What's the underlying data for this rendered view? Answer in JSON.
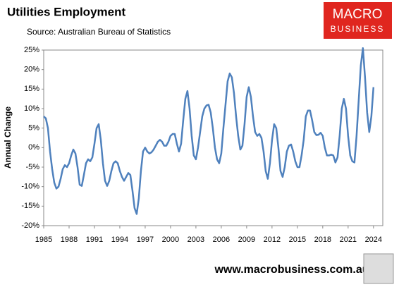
{
  "chart_data": {
    "type": "line",
    "title": "Utilities Employment",
    "subtitle": "Source: Australian Bureau of Statistics",
    "y_label": "Annual Change",
    "logo": [
      "MACRO",
      "BUSINESS"
    ],
    "footer": "www.macrobusiness.com.au",
    "xlim": [
      1985,
      2025.1
    ],
    "xticks": [
      1985,
      1988,
      1991,
      1994,
      1997,
      2000,
      2003,
      2006,
      2009,
      2012,
      2015,
      2018,
      2021,
      2024
    ],
    "ylim": [
      -20,
      25
    ],
    "yticks": [
      {
        "value": -20,
        "label": "-20%"
      },
      {
        "value": -15,
        "label": "-15%"
      },
      {
        "value": -10,
        "label": "-10%"
      },
      {
        "value": -5,
        "label": "-5%"
      },
      {
        "value": 0,
        "label": "0%"
      },
      {
        "value": 5,
        "label": "5%"
      },
      {
        "value": 10,
        "label": "10%"
      },
      {
        "value": 15,
        "label": "15%"
      },
      {
        "value": 20,
        "label": "20%"
      },
      {
        "value": 25,
        "label": "25%"
      }
    ],
    "x": [
      1985,
      1985.25,
      1985.5,
      1985.75,
      1986,
      1986.25,
      1986.5,
      1986.75,
      1987,
      1987.25,
      1987.5,
      1987.75,
      1988,
      1988.25,
      1988.5,
      1988.75,
      1989,
      1989.25,
      1989.5,
      1989.75,
      1990,
      1990.25,
      1990.5,
      1990.75,
      1991,
      1991.25,
      1991.5,
      1991.75,
      1992,
      1992.25,
      1992.5,
      1992.75,
      1993,
      1993.25,
      1993.5,
      1993.75,
      1994,
      1994.25,
      1994.5,
      1994.75,
      1995,
      1995.25,
      1995.5,
      1995.75,
      1996,
      1996.25,
      1996.5,
      1996.75,
      1997,
      1997.25,
      1997.5,
      1997.75,
      1998,
      1998.25,
      1998.5,
      1998.75,
      1999,
      1999.25,
      1999.5,
      1999.75,
      2000,
      2000.25,
      2000.5,
      2000.75,
      2001,
      2001.25,
      2001.5,
      2001.75,
      2002,
      2002.25,
      2002.5,
      2002.75,
      2003,
      2003.25,
      2003.5,
      2003.75,
      2004,
      2004.25,
      2004.5,
      2004.75,
      2005,
      2005.25,
      2005.5,
      2005.75,
      2006,
      2006.25,
      2006.5,
      2006.75,
      2007,
      2007.25,
      2007.5,
      2007.75,
      2008,
      2008.25,
      2008.5,
      2008.75,
      2009,
      2009.25,
      2009.5,
      2009.75,
      2010,
      2010.25,
      2010.5,
      2010.75,
      2011,
      2011.25,
      2011.5,
      2011.75,
      2012,
      2012.25,
      2012.5,
      2012.75,
      2013,
      2013.25,
      2013.5,
      2013.75,
      2014,
      2014.25,
      2014.5,
      2014.75,
      2015,
      2015.25,
      2015.5,
      2015.75,
      2016,
      2016.25,
      2016.5,
      2016.75,
      2017,
      2017.25,
      2017.5,
      2017.75,
      2018,
      2018.25,
      2018.5,
      2018.75,
      2019,
      2019.25,
      2019.5,
      2019.75,
      2020,
      2020.25,
      2020.5,
      2020.75,
      2021,
      2021.25,
      2021.5,
      2021.75,
      2022,
      2022.25,
      2022.5,
      2022.75,
      2023,
      2023.25,
      2023.5,
      2023.75,
      2024
    ],
    "series": [
      {
        "name": "Annual Change",
        "color": "#4f81bd",
        "values": [
          8,
          7.5,
          5,
          -1,
          -5.5,
          -9,
          -10.5,
          -10,
          -8,
          -5.5,
          -4.5,
          -5,
          -4,
          -2,
          -0.5,
          -1.5,
          -5,
          -9.5,
          -9.8,
          -7,
          -4,
          -3,
          -3.5,
          -2.5,
          1,
          5,
          6,
          2,
          -4,
          -8.5,
          -9.8,
          -8.5,
          -6,
          -4,
          -3.5,
          -4,
          -6,
          -7.5,
          -8.5,
          -7.5,
          -6.5,
          -7,
          -11,
          -15.5,
          -17,
          -13,
          -6,
          -1,
          0,
          -1,
          -1.5,
          -1.2,
          -0.5,
          0.5,
          1.5,
          2,
          1.5,
          0.5,
          0.5,
          1.5,
          3,
          3.5,
          3.5,
          1,
          -1,
          1,
          7,
          12.5,
          14.5,
          10,
          3,
          -2,
          -3,
          0,
          4,
          8,
          10,
          10.8,
          11,
          9,
          5,
          0,
          -3,
          -4,
          -1.5,
          5,
          11,
          17,
          19,
          18,
          14,
          8,
          3,
          -0.5,
          0.5,
          6,
          13,
          15.5,
          13,
          8,
          4,
          3,
          3.5,
          2.5,
          -1,
          -6,
          -8,
          -4,
          2,
          6,
          5,
          0,
          -6,
          -7.5,
          -5,
          -1,
          0.5,
          0.8,
          -1,
          -3.5,
          -5,
          -5,
          -2,
          2,
          8,
          9.5,
          9.5,
          7,
          4,
          3.2,
          3.3,
          3.8,
          3,
          0,
          -2,
          -2,
          -1.8,
          -2,
          -3.8,
          -2.5,
          3,
          10,
          12.5,
          10,
          3,
          -2,
          -3.5,
          -3.8,
          3,
          12,
          21,
          25.5,
          18,
          9,
          4,
          8,
          15.5
        ]
      }
    ]
  }
}
